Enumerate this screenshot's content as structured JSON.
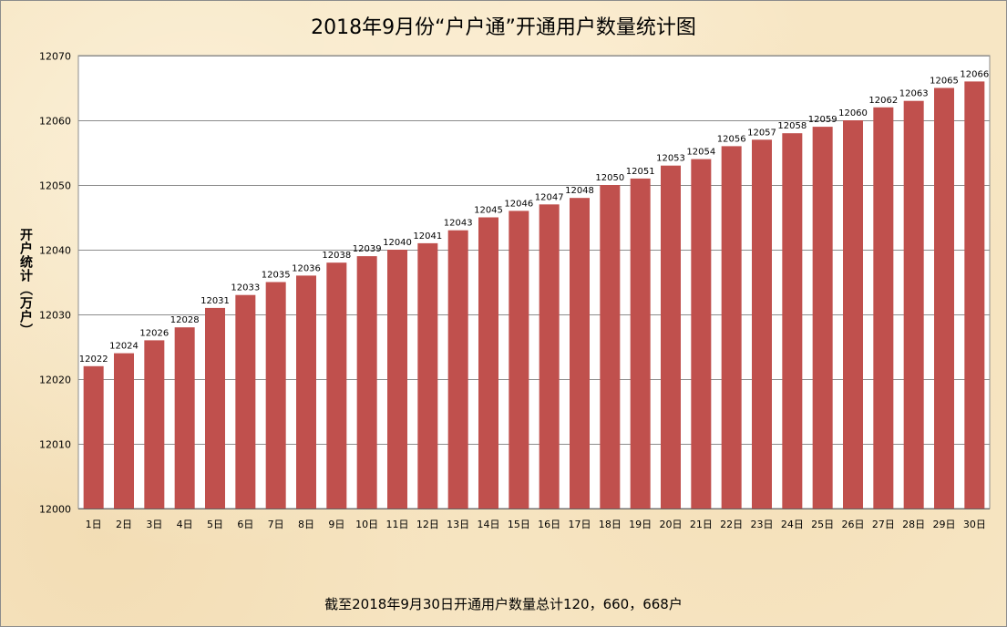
{
  "chart_data": {
    "type": "bar",
    "title": "2018年9月份“户户通”开通用户数量统计图",
    "xlabel": "",
    "ylabel": "开户统计（万户）",
    "ylim": [
      12000,
      12070
    ],
    "yticks": [
      12000,
      12010,
      12020,
      12030,
      12040,
      12050,
      12060,
      12070
    ],
    "grid": true,
    "legend": "none",
    "bar_color": "#c0504d",
    "categories": [
      "1日",
      "2日",
      "3日",
      "4日",
      "5日",
      "6日",
      "7日",
      "8日",
      "9日",
      "10日",
      "11日",
      "12日",
      "13日",
      "14日",
      "15日",
      "16日",
      "17日",
      "18日",
      "19日",
      "20日",
      "21日",
      "22日",
      "23日",
      "24日",
      "25日",
      "26日",
      "27日",
      "28日",
      "29日",
      "30日"
    ],
    "values": [
      12022,
      12024,
      12026,
      12028,
      12031,
      12033,
      12035,
      12036,
      12038,
      12039,
      12040,
      12041,
      12043,
      12045,
      12046,
      12047,
      12048,
      12050,
      12051,
      12053,
      12054,
      12056,
      12057,
      12058,
      12059,
      12060,
      12062,
      12063,
      12065,
      12066
    ],
    "footnote": "截至2018年9月30日开通用户数量总计120，660，668户"
  }
}
